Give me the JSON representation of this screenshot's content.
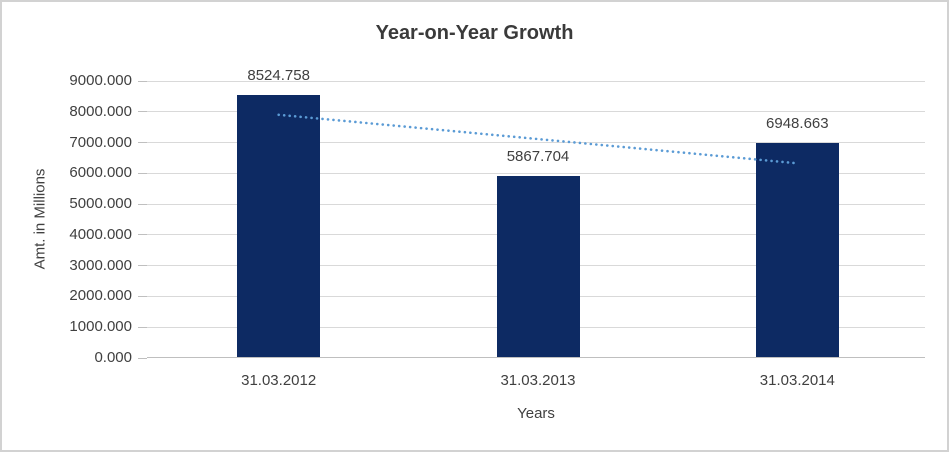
{
  "chart_data": {
    "type": "bar",
    "title": "Year-on-Year Growth",
    "categories": [
      "31.03.2012",
      "31.03.2013",
      "31.03.2014"
    ],
    "values": [
      8524.758,
      5867.704,
      6948.663
    ],
    "data_labels": [
      "8524.758",
      "5867.704",
      "6948.663"
    ],
    "xlabel": "Years",
    "ylabel": "Amt. in Millions",
    "ylim": [
      0,
      9000
    ],
    "ytick_step": 1000,
    "ytick_labels": [
      "0.000",
      "1000.000",
      "2000.000",
      "3000.000",
      "4000.000",
      "5000.000",
      "6000.000",
      "7000.000",
      "8000.000",
      "9000.000"
    ],
    "grid": true,
    "legend": "none",
    "trendline": {
      "kind": "linear",
      "style": "dotted"
    },
    "colors": {
      "bar": "#0d2a63",
      "trendline": "#5b9bd5",
      "gridline": "#d9d9d9",
      "axis_line": "#bfbfbf",
      "text": "#404040",
      "title_text": "#3a3a3a",
      "frame_border": "#d2d2d2"
    }
  }
}
